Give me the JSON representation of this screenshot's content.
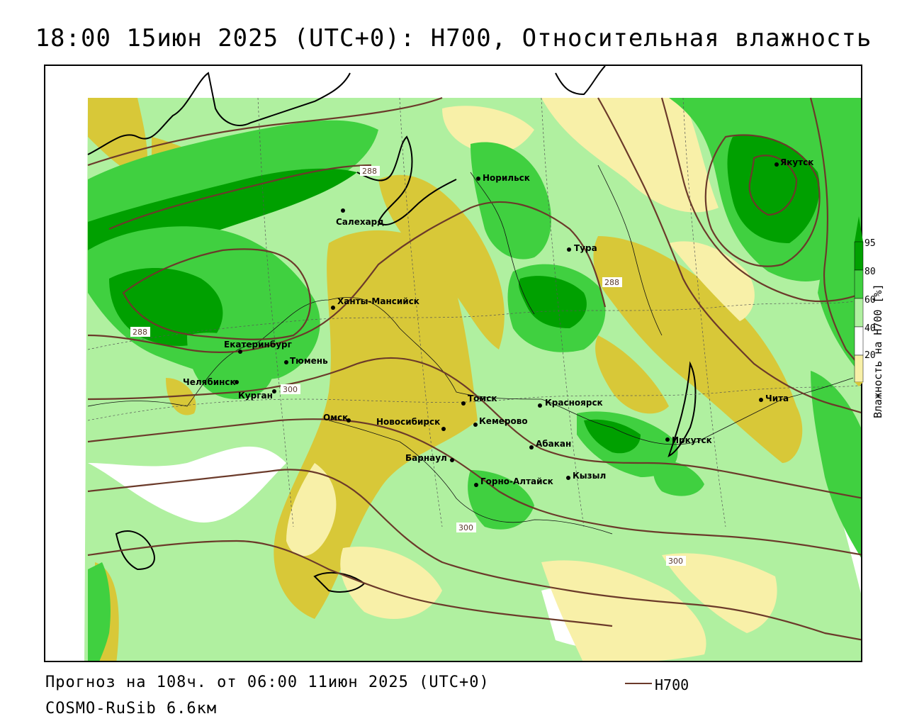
{
  "header": {
    "title": "18:00 15июн 2025 (UTC+0): H700, Относительная влажность"
  },
  "footer": {
    "forecast": "Прогноз на 108ч. от 06:00 11июн 2025 (UTC+0)",
    "model": "COSMO-RuSib 6.6км",
    "legend_line_label": "H700"
  },
  "colorbar": {
    "title": "Влажность на H700 [%]",
    "ticks": [
      "95",
      "80",
      "60",
      "40",
      "20"
    ],
    "colors": {
      "dark_green": "#00a000",
      "green": "#40d040",
      "light_green": "#b0f0a0",
      "white": "#ffffff",
      "light_yellow": "#f8f0a8",
      "yellow": "#d8c838"
    }
  },
  "contours": {
    "color": "#6b3a2a",
    "labels": [
      "288",
      "288",
      "288",
      "300",
      "300",
      "300"
    ]
  },
  "cities": [
    {
      "name": "Якутск"
    },
    {
      "name": "Норильск"
    },
    {
      "name": "Салехард"
    },
    {
      "name": "Тура"
    },
    {
      "name": "Ханты-Мансийск"
    },
    {
      "name": "Екатеринбург"
    },
    {
      "name": "Тюмень"
    },
    {
      "name": "Челябинск"
    },
    {
      "name": "Курган"
    },
    {
      "name": "Омск"
    },
    {
      "name": "Томск"
    },
    {
      "name": "Красноярск"
    },
    {
      "name": "Новосибирск"
    },
    {
      "name": "Кемерово"
    },
    {
      "name": "Абакан"
    },
    {
      "name": "Барнаул"
    },
    {
      "name": "Горно-Алтайск"
    },
    {
      "name": "Кызыл"
    },
    {
      "name": "Иркутск"
    },
    {
      "name": "Чита"
    }
  ]
}
